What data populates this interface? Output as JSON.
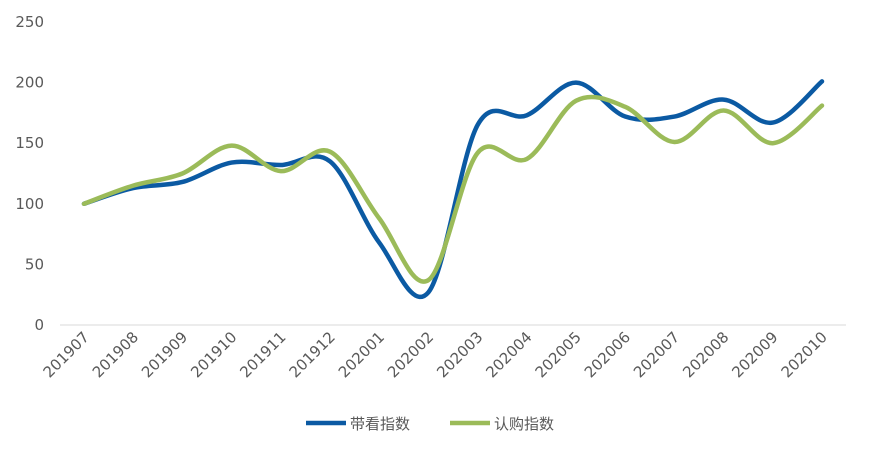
{
  "chart_data": {
    "type": "line",
    "title": "",
    "xlabel": "",
    "ylabel": "",
    "ylim": [
      0,
      250
    ],
    "yticks": [
      0,
      50,
      100,
      150,
      200,
      250
    ],
    "grid": false,
    "legend_position": "bottom",
    "categories": [
      "201907",
      "201908",
      "201909",
      "201910",
      "201911",
      "201912",
      "202001",
      "202002",
      "202003",
      "202004",
      "202005",
      "202006",
      "202007",
      "202008",
      "202009",
      "202010"
    ],
    "series": [
      {
        "name": "带看指数",
        "color": "#0B5AA3",
        "values": [
          100,
          113,
          118,
          134,
          132,
          135,
          68,
          27,
          165,
          173,
          200,
          172,
          172,
          186,
          167,
          201
        ]
      },
      {
        "name": "认购指数",
        "color": "#9BBB59",
        "values": [
          100,
          115,
          125,
          148,
          127,
          143,
          88,
          37,
          142,
          137,
          185,
          180,
          151,
          177,
          150,
          181
        ]
      }
    ]
  }
}
